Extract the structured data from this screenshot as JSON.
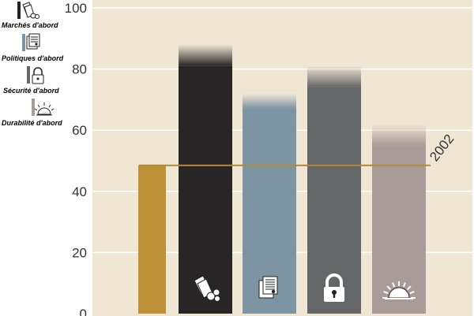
{
  "chart_data": {
    "type": "bar",
    "title": "",
    "xlabel": "",
    "ylabel": "",
    "ylim": [
      0,
      100
    ],
    "y_ticks": [
      0,
      20,
      40,
      60,
      80,
      100
    ],
    "grid": true,
    "legend_placement": "top-left",
    "reference_line": {
      "label": "2002",
      "value": 48.5,
      "color": "#b38a36"
    },
    "bars": [
      {
        "name": "",
        "value": 48.5,
        "color": "#bf9139",
        "icon": ""
      },
      {
        "name": "Marchés d'abord",
        "value": 81,
        "fade_to": 88,
        "color": "#282526",
        "icon": "stacked-sheets-icon"
      },
      {
        "name": "Politiques d'abord",
        "value": 67,
        "fade_to": 72,
        "color": "#7d95a2",
        "icon": "documents-icon"
      },
      {
        "name": "Sécurité d'abord",
        "value": 74,
        "fade_to": 81,
        "color": "#646667",
        "icon": "padlock-icon"
      },
      {
        "name": "Durabilité d'abord",
        "value": 55,
        "fade_to": 62,
        "color": "#a89b98",
        "icon": "rising-sun-icon"
      }
    ]
  },
  "colors": {
    "plot_background": "#f0e6d4",
    "grid": "#ffffff"
  }
}
